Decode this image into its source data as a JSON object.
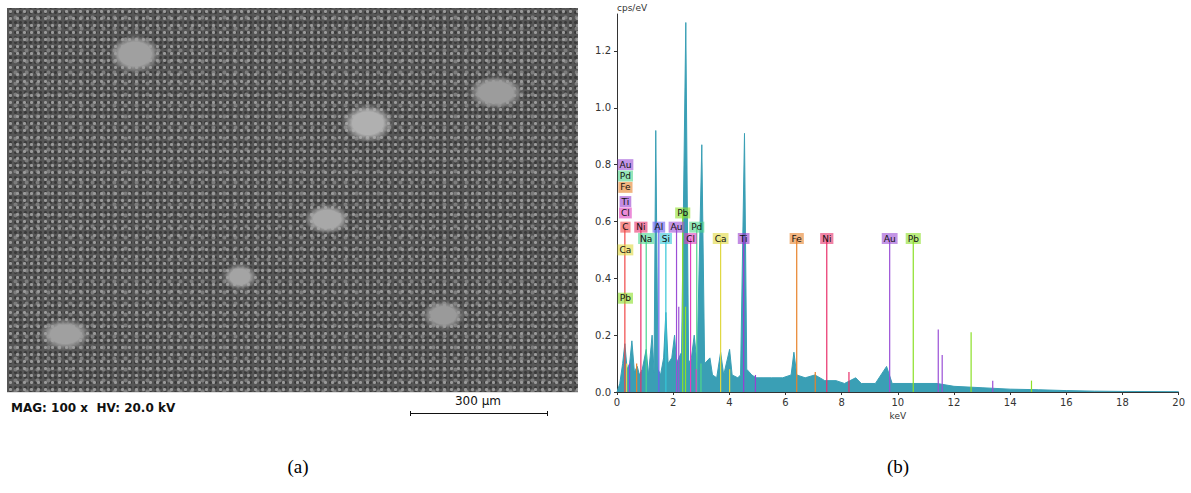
{
  "image_panel": {
    "caption": "(a)",
    "info_text": "MAG: 100 x  HV: 20.0 kV",
    "scale_bar": "300 µm"
  },
  "chart_data": {
    "type": "line",
    "caption": "(b)",
    "x_label": "keV",
    "y_label": "cps/eV",
    "color": "#3a9fb5",
    "grid": false,
    "xlim": [
      0,
      20
    ],
    "xticks": [
      0,
      2,
      4,
      6,
      8,
      10,
      12,
      14,
      16,
      18,
      20
    ],
    "ylim": [
      0,
      1.33
    ],
    "yticks": [
      {
        "value": 0,
        "label": "0.0"
      },
      0.2,
      0.4,
      0.6,
      0.8,
      {
        "value": 1,
        "label": "1.0"
      },
      1.2
    ],
    "x": [
      0,
      0.1,
      0.2,
      0.28,
      0.36,
      0.45,
      0.53,
      0.62,
      0.72,
      0.8,
      0.9,
      1.04,
      1.12,
      1.25,
      1.32,
      1.38,
      1.46,
      1.55,
      1.66,
      1.74,
      1.82,
      1.95,
      2.05,
      2.12,
      2.2,
      2.3,
      2.45,
      2.55,
      2.65,
      2.75,
      2.85,
      3.02,
      3.12,
      3.31,
      3.4,
      3.55,
      3.69,
      3.8,
      4.01,
      4.1,
      4.3,
      4.4,
      4.54,
      4.62,
      4.8,
      4.95,
      5.2,
      5.5,
      5.9,
      6.2,
      6.3,
      6.4,
      6.7,
      7.05,
      7.4,
      7.8,
      8.1,
      8.5,
      8.7,
      9.2,
      9.6,
      9.8,
      10.5,
      11.4,
      12,
      13,
      14,
      15,
      16,
      17,
      18,
      20
    ],
    "values": [
      0,
      0.03,
      0.1,
      0.17,
      0.08,
      0.1,
      0.18,
      0.07,
      0.09,
      0.06,
      0.08,
      0.15,
      0.06,
      0.2,
      0.07,
      0.92,
      0.08,
      0.06,
      0.12,
      0.28,
      0.1,
      0.12,
      0.2,
      0.1,
      0.12,
      0.14,
      1.3,
      0.1,
      0.12,
      0.2,
      0.1,
      0.87,
      0.1,
      0.12,
      0.06,
      0.05,
      0.14,
      0.06,
      0.15,
      0.06,
      0.05,
      0.06,
      0.91,
      0.08,
      0.06,
      0.05,
      0.05,
      0.05,
      0.05,
      0.06,
      0.14,
      0.06,
      0.05,
      0.06,
      0.04,
      0.04,
      0.03,
      0.05,
      0.03,
      0.03,
      0.09,
      0.03,
      0.03,
      0.03,
      0.02,
      0.015,
      0.01,
      0.008,
      0.005,
      0.003,
      0.002,
      0.001
    ],
    "elements": [
      {
        "name": "Au",
        "color": "#9b4fd6",
        "label_positions": [
          [
            0.3,
            0.8
          ],
          [
            2.12,
            0.58
          ],
          [
            9.71,
            0.54
          ]
        ],
        "lines": [
          [
            2.12,
            0.58
          ],
          [
            2.2,
            0.3
          ],
          [
            9.71,
            0.54
          ],
          [
            11.44,
            0.22
          ],
          [
            11.58,
            0.13
          ],
          [
            13.38,
            0.04
          ]
        ]
      },
      {
        "name": "Pd",
        "color": "#4fd68a",
        "label_positions": [
          [
            0.3,
            0.76
          ],
          [
            2.84,
            0.58
          ]
        ],
        "lines": [
          [
            2.84,
            0.58
          ],
          [
            2.99,
            0.1
          ]
        ]
      },
      {
        "name": "Fe",
        "color": "#e8822a",
        "label_positions": [
          [
            0.3,
            0.72
          ],
          [
            6.4,
            0.54
          ]
        ],
        "lines": [
          [
            0.7,
            0.1
          ],
          [
            6.4,
            0.54
          ],
          [
            7.06,
            0.07
          ]
        ]
      },
      {
        "name": "Ti",
        "color": "#9a3fd0",
        "label_positions": [
          [
            0.3,
            0.67
          ],
          [
            4.51,
            0.54
          ]
        ],
        "lines": [
          [
            0.45,
            0.1
          ],
          [
            4.51,
            0.54
          ],
          [
            4.93,
            0.06
          ]
        ]
      },
      {
        "name": "Cl",
        "color": "#e040c0",
        "label_positions": [
          [
            0.3,
            0.63
          ],
          [
            2.62,
            0.54
          ]
        ],
        "lines": [
          [
            2.62,
            0.54
          ],
          [
            2.82,
            0.08
          ]
        ]
      },
      {
        "name": "C",
        "color": "#f04848",
        "label_positions": [
          [
            0.3,
            0.58
          ]
        ],
        "lines": [
          [
            0.28,
            0.58
          ]
        ]
      },
      {
        "name": "Ni",
        "color": "#e8306a",
        "label_positions": [
          [
            0.85,
            0.58
          ],
          [
            7.47,
            0.54
          ]
        ],
        "lines": [
          [
            0.85,
            0.58
          ],
          [
            7.47,
            0.54
          ],
          [
            8.26,
            0.07
          ]
        ]
      },
      {
        "name": "Al",
        "color": "#6b5ff0",
        "label_positions": [
          [
            1.49,
            0.58
          ]
        ],
        "lines": [
          [
            1.49,
            0.58
          ]
        ]
      },
      {
        "name": "Na",
        "color": "#48d890",
        "label_positions": [
          [
            1.04,
            0.54
          ]
        ],
        "lines": [
          [
            1.04,
            0.54
          ]
        ]
      },
      {
        "name": "Si",
        "color": "#34c6d8",
        "label_positions": [
          [
            1.74,
            0.54
          ]
        ],
        "lines": [
          [
            1.74,
            0.54
          ]
        ]
      },
      {
        "name": "Ca",
        "color": "#e0d840",
        "label_positions": [
          [
            0.3,
            0.5
          ],
          [
            3.69,
            0.54
          ]
        ],
        "lines": [
          [
            0.34,
            0.1
          ],
          [
            3.69,
            0.54
          ],
          [
            4.01,
            0.08
          ]
        ]
      },
      {
        "name": "Pb",
        "color": "#8ce028",
        "label_positions": [
          [
            0.3,
            0.33
          ],
          [
            2.34,
            0.63
          ],
          [
            10.55,
            0.54
          ]
        ],
        "lines": [
          [
            2.34,
            0.63
          ],
          [
            2.44,
            0.3
          ],
          [
            10.55,
            0.54
          ],
          [
            12.61,
            0.21
          ],
          [
            14.76,
            0.04
          ]
        ]
      }
    ]
  }
}
